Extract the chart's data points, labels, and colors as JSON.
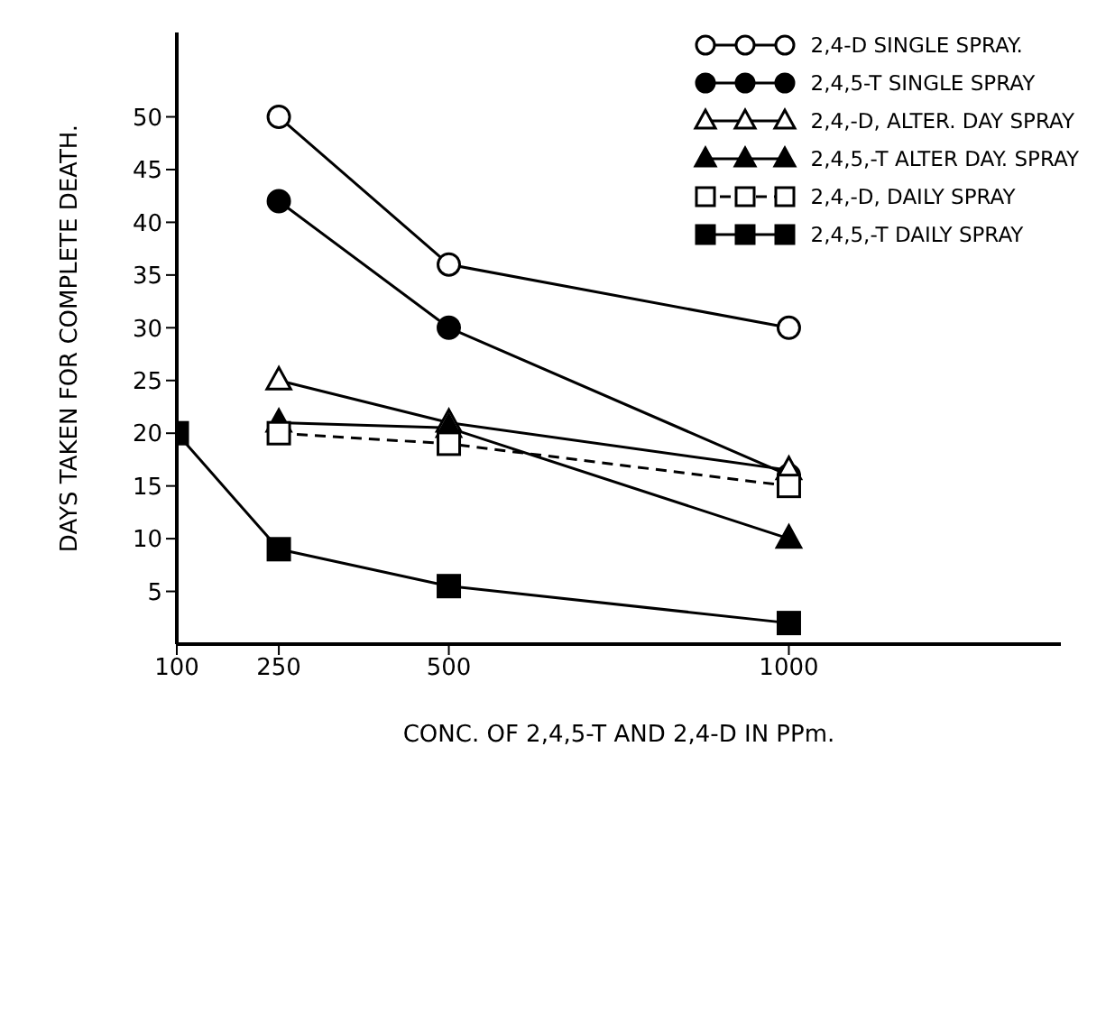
{
  "chart_data": {
    "type": "line",
    "xlabel": "CONC. OF  2,4,5-T AND 2,4-D  IN  PPm.",
    "ylabel": "DAYS TAKEN FOR COMPLETE DEATH.",
    "xlim": [
      100,
      1400
    ],
    "xticks": [
      100,
      250,
      500,
      1000
    ],
    "ylim": [
      0,
      58
    ],
    "yticks": [
      5,
      10,
      15,
      20,
      25,
      30,
      35,
      40,
      45,
      50
    ],
    "grid": false,
    "legend": "top right",
    "series": [
      {
        "name": "2,4-D SINGLE SPRAY.",
        "color": "#000000",
        "marker": "circle-open",
        "line_style": "solid",
        "x": [
          250,
          500,
          1000
        ],
        "values": [
          50,
          36,
          30
        ]
      },
      {
        "name": "2,4,5-T SINGLE SPRAY",
        "color": "#000000",
        "marker": "circle",
        "line_style": "solid",
        "x": [
          250,
          500,
          1000
        ],
        "values": [
          42,
          30,
          16
        ]
      },
      {
        "name": "2,4,-D, ALTER. DAY SPRAY",
        "color": "#000000",
        "marker": "triangle-open",
        "line_style": "solid",
        "x": [
          250,
          500,
          1000
        ],
        "values": [
          25,
          21,
          16.5
        ]
      },
      {
        "name": "2,4,5,-T ALTER DAY. SPRAY",
        "color": "#000000",
        "marker": "triangle",
        "line_style": "solid",
        "x": [
          250,
          500,
          1000
        ],
        "values": [
          21,
          20.5,
          10
        ]
      },
      {
        "name": "2,4,-D, DAILY SPRAY",
        "color": "#000000",
        "marker": "square-open",
        "line_style": "dashed",
        "x": [
          250,
          500,
          1000
        ],
        "values": [
          20,
          19,
          15
        ]
      },
      {
        "name": "2,4,5,-T DAILY SPRAY",
        "color": "#000000",
        "marker": "square",
        "line_style": "solid",
        "x": [
          100,
          250,
          500,
          1000
        ],
        "values": [
          20,
          9,
          5.5,
          2
        ]
      }
    ]
  }
}
